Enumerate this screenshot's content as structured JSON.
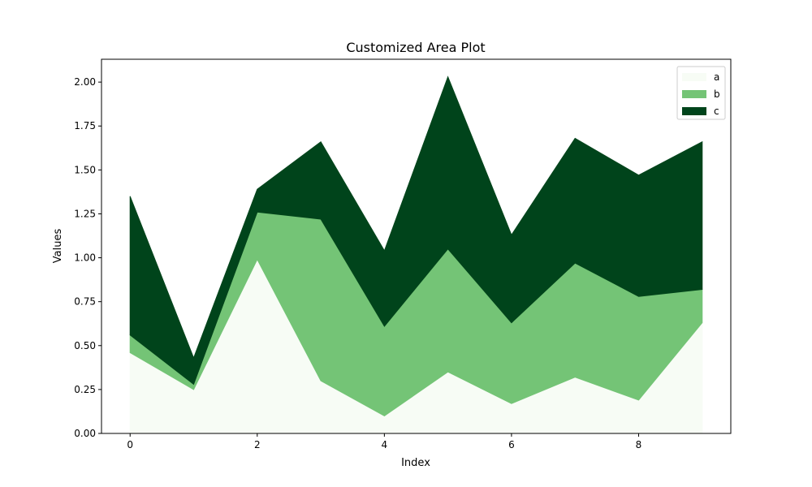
{
  "chart_data": {
    "type": "area",
    "stacked": true,
    "title": "Customized Area Plot",
    "xlabel": "Index",
    "ylabel": "Values",
    "x": [
      0,
      1,
      2,
      3,
      4,
      5,
      6,
      7,
      8,
      9
    ],
    "series": [
      {
        "name": "a",
        "color": "#f7fcf5",
        "values": [
          0.46,
          0.25,
          0.99,
          0.3,
          0.1,
          0.35,
          0.17,
          0.32,
          0.19,
          0.63
        ]
      },
      {
        "name": "b",
        "color": "#74c476",
        "values": [
          0.1,
          0.03,
          0.27,
          0.92,
          0.51,
          0.7,
          0.46,
          0.65,
          0.59,
          0.19
        ]
      },
      {
        "name": "c",
        "color": "#00441b",
        "values": [
          0.79,
          0.15,
          0.13,
          0.44,
          0.43,
          0.98,
          0.5,
          0.71,
          0.69,
          0.84
        ]
      }
    ],
    "xlim": [
      -0.45,
      9.45
    ],
    "ylim": [
      0,
      2.13
    ],
    "xticks": [
      0,
      2,
      4,
      6,
      8
    ],
    "yticks": [
      0.0,
      0.25,
      0.5,
      0.75,
      1.0,
      1.25,
      1.5,
      1.75,
      2.0
    ],
    "ytick_labels": [
      "0.00",
      "0.25",
      "0.50",
      "0.75",
      "1.00",
      "1.25",
      "1.50",
      "1.75",
      "2.00"
    ],
    "grid": false,
    "legend_position": "upper right"
  }
}
